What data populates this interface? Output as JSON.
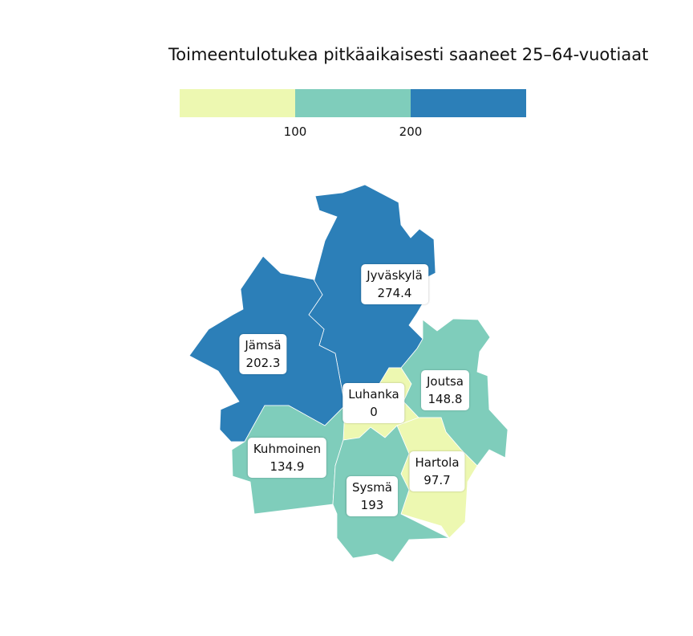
{
  "title": "Toimeentulotukea pitkäaikaisesti saaneet 25–64-vuotiaat",
  "legend": {
    "ticks": [
      "100",
      "200"
    ],
    "colors": [
      "#edf8b1",
      "#7fcdbb",
      "#2c7fb8"
    ]
  },
  "regions": [
    {
      "name": "Jyväskylä",
      "value": "274.4",
      "color": "#2c7fb8"
    },
    {
      "name": "Jämsä",
      "value": "202.3",
      "color": "#2c7fb8"
    },
    {
      "name": "Luhanka",
      "value": "0",
      "color": "#edf8b1"
    },
    {
      "name": "Joutsa",
      "value": "148.8",
      "color": "#7fcdbb"
    },
    {
      "name": "Kuhmoinen",
      "value": "134.9",
      "color": "#7fcdbb"
    },
    {
      "name": "Hartola",
      "value": "97.7",
      "color": "#edf8b1"
    },
    {
      "name": "Sysmä",
      "value": "193",
      "color": "#7fcdbb"
    }
  ]
}
